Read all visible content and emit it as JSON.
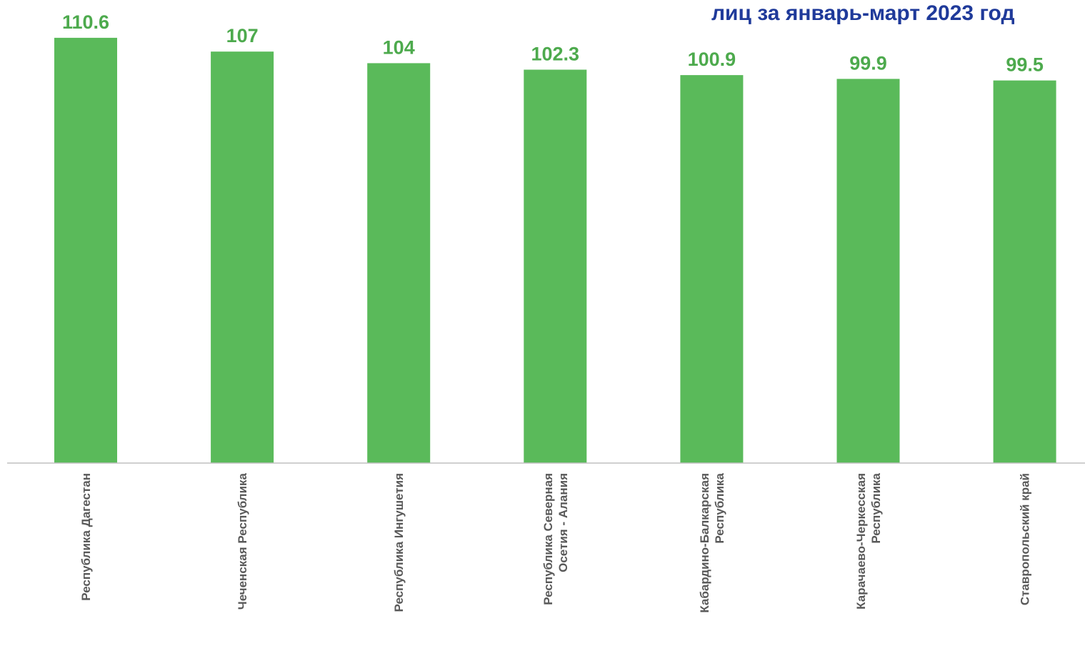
{
  "colors": {
    "bar": "#5aba5a",
    "value_label": "#4daa4d",
    "axis": "#bfbfbf",
    "title": "#1f3a9a",
    "category_label": "#595959"
  },
  "chart_data": {
    "type": "bar",
    "title": "лиц за январь-март 2023 год",
    "xlabel": "",
    "ylabel": "",
    "grid": false,
    "legend": "none",
    "ylim": [
      0,
      115
    ],
    "categories": [
      [
        "Республика Дагестан"
      ],
      [
        "Чеченская Республика"
      ],
      [
        "Республика Ингушетия"
      ],
      [
        "Республика Северная",
        "Осетия - Алания"
      ],
      [
        "Кабардино-Балкарская",
        "Республика"
      ],
      [
        "Карачаево-Черкесская",
        "Республика"
      ],
      [
        "Ставропольский край"
      ]
    ],
    "values": [
      110.6,
      107,
      104,
      102.3,
      100.9,
      99.9,
      99.5
    ],
    "value_labels": [
      "110.6",
      "107",
      "104",
      "102.3",
      "100.9",
      "99.9",
      "99.5"
    ]
  }
}
